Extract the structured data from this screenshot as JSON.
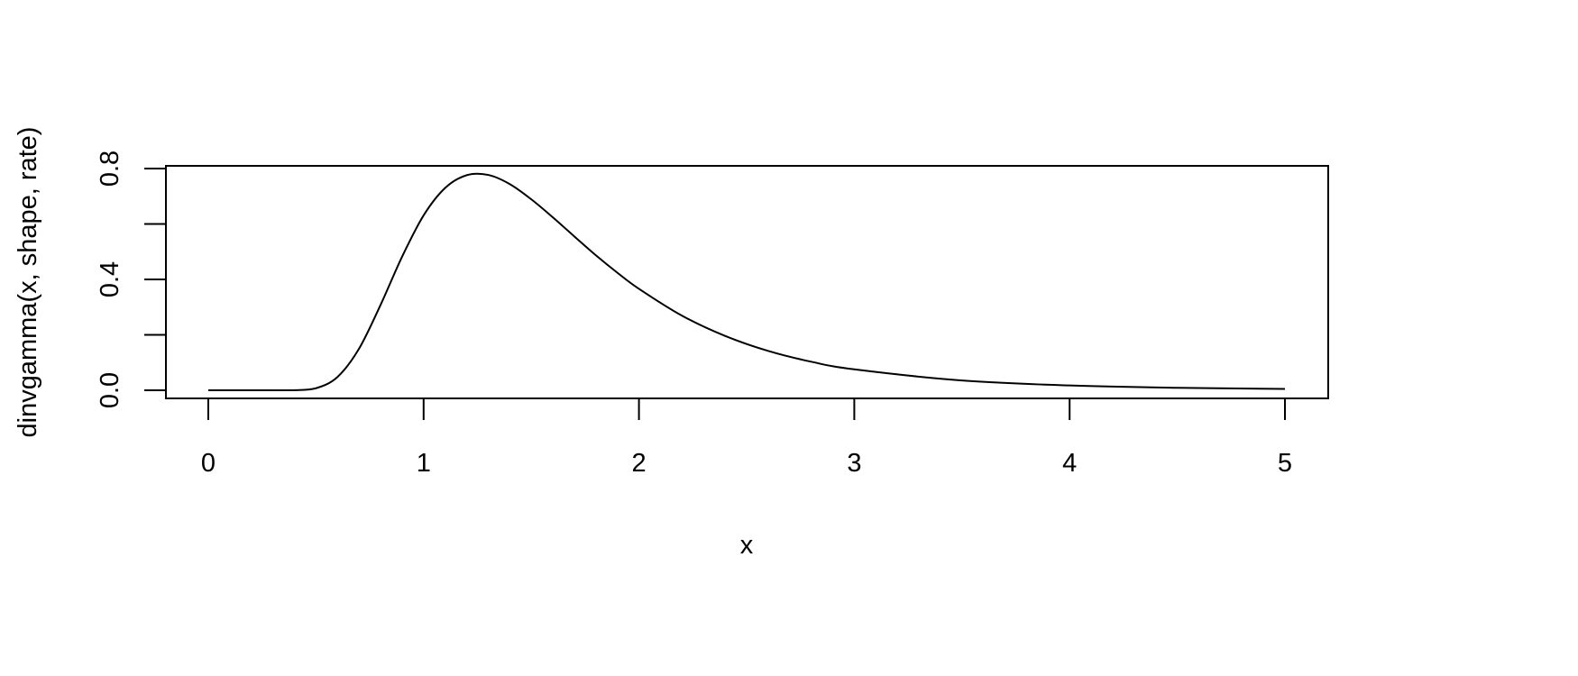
{
  "chart_data": {
    "type": "line",
    "title": "",
    "xlabel": "x",
    "ylabel": "dinvgamma(x, shape, rate)",
    "xlim": [
      0,
      5
    ],
    "ylim": [
      0,
      0.8
    ],
    "x_ticks": [
      0,
      1,
      2,
      3,
      4,
      5
    ],
    "x_tick_labels": [
      "0",
      "1",
      "2",
      "3",
      "4",
      "5"
    ],
    "y_ticks": [
      0,
      0.2,
      0.4,
      0.6,
      0.8
    ],
    "y_tick_labels": [
      "0.0",
      "",
      "0.4",
      "",
      "0.8"
    ],
    "grid": false,
    "line_color": "#000000",
    "series": [
      {
        "x": [
          0,
          0.1,
          0.2,
          0.3,
          0.4,
          0.5,
          0.6,
          0.7,
          0.8,
          0.9,
          1.0,
          1.1,
          1.2,
          1.3,
          1.4,
          1.5,
          1.6,
          1.7,
          1.8,
          1.9,
          2.0,
          2.2,
          2.4,
          2.6,
          2.8,
          3.0,
          3.5,
          4.0,
          4.5,
          5.0
        ],
        "y": [
          0,
          0,
          0,
          0,
          0.0003,
          0.0073,
          0.048,
          0.15,
          0.308,
          0.482,
          0.631,
          0.73,
          0.776,
          0.777,
          0.744,
          0.689,
          0.624,
          0.555,
          0.487,
          0.424,
          0.366,
          0.269,
          0.196,
          0.142,
          0.103,
          0.0755,
          0.0354,
          0.0174,
          0.009,
          0.0048
        ]
      }
    ]
  }
}
